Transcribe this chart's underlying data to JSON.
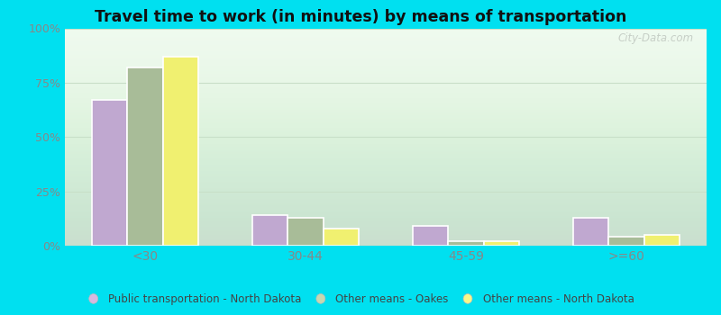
{
  "title": "Travel time to work (in minutes) by means of transportation",
  "categories": [
    "<30",
    "30-44",
    "45-59",
    ">=60"
  ],
  "series": {
    "Public transportation - North Dakota": [
      67,
      14,
      9,
      13
    ],
    "Other means - Oakes": [
      82,
      13,
      2,
      4
    ],
    "Other means - North Dakota": [
      87,
      8,
      2,
      5
    ]
  },
  "colors": {
    "Public transportation - North Dakota": "#c0a8d0",
    "Other means - Oakes": "#a8bc98",
    "Other means - North Dakota": "#f0f070"
  },
  "legend_marker_colors": {
    "Public transportation - North Dakota": "#d8b8e0",
    "Other means - Oakes": "#c8d8b0",
    "Other means - North Dakota": "#f8f888"
  },
  "ylim": [
    0,
    100
  ],
  "yticks": [
    0,
    25,
    50,
    75,
    100
  ],
  "ytick_labels": [
    "0%",
    "25%",
    "50%",
    "75%",
    "100%"
  ],
  "bg_top": "#d8efd0",
  "bg_bottom": "#eefaee",
  "outer_background": "#00e0f0",
  "bar_width": 0.22,
  "watermark": "City-Data.com",
  "grid_color": "#c8dfc8",
  "tick_color": "#888888",
  "title_color": "#111111",
  "legend_text_color": "#444444"
}
